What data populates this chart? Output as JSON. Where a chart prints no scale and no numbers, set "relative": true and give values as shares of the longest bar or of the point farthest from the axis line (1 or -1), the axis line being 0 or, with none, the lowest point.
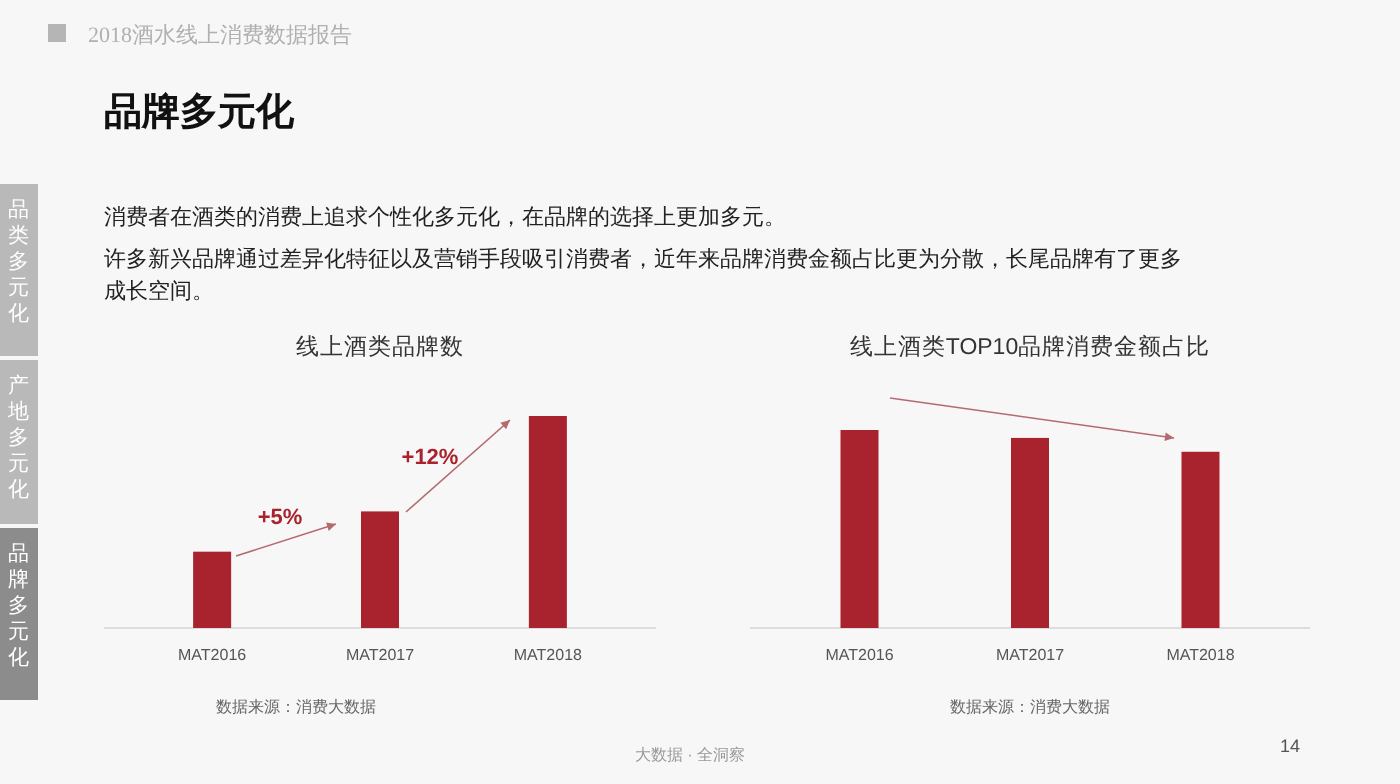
{
  "chart_data": [
    {
      "type": "other",
      "subtitle": "2018酒水线上消费数据报告",
      "title": "品牌多元化",
      "annotations": [
        "消费者在酒类的消费上追求个性化多元化，在品牌的选择上更加多元。",
        "许多新兴品牌通过差异化特征以及营销手段吸引消费者，近年来品牌消费金额占比更为分散，长尾品牌有了更多成长空间。",
        "品类多元化",
        "产地多元化",
        "品牌多元化",
        "大数据 · 全洞察",
        "14"
      ]
    },
    {
      "type": "bar",
      "title": "线上酒类品牌数",
      "categories": [
        "MAT2016",
        "MAT2017",
        "MAT2018"
      ],
      "values": [
        0.36,
        0.55,
        1
      ],
      "color": "#a8232e",
      "relative": true,
      "annotations": [
        "+5%",
        "+12%",
        "数据来源：消费大数据"
      ]
    },
    {
      "type": "bar",
      "title": "线上酒类TOP10品牌消费金额占比",
      "categories": [
        "MAT2016",
        "MAT2017",
        "MAT2018"
      ],
      "values": [
        1,
        0.96,
        0.89
      ],
      "color": "#a8232e",
      "relative": true,
      "annotations": [
        "数据来源：消费大数据"
      ]
    }
  ]
}
